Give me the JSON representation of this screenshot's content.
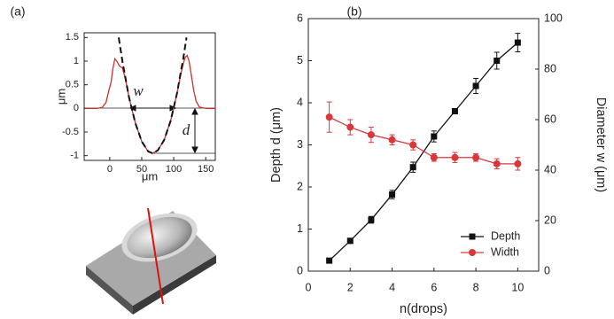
{
  "chart_data": [
    {
      "type": "line",
      "panel_label": "(a)",
      "x_label": "μm",
      "y_label": "μm",
      "xlim": [
        -40,
        165
      ],
      "ylim": [
        -1.1,
        1.6
      ],
      "xticks": [
        0,
        50,
        100,
        150
      ],
      "yticks": [
        -1,
        -0.5,
        0,
        0.5,
        1,
        1.5
      ],
      "annotations": [
        "w",
        "d"
      ],
      "series": [
        {
          "color": "#d0312d",
          "dash": false,
          "x": [
            -38,
            -20,
            -12,
            -6,
            -2,
            2,
            5,
            8,
            11,
            15,
            20,
            25,
            30,
            40,
            50,
            60,
            67,
            75,
            85,
            95,
            105,
            110,
            115,
            118,
            121,
            124,
            127,
            131,
            135,
            140,
            150,
            165
          ],
          "values": [
            0,
            0,
            0.02,
            0.12,
            0.35,
            0.55,
            0.85,
            1.05,
            1.0,
            0.9,
            0.85,
            0.59,
            0.24,
            -0.31,
            -0.7,
            -0.91,
            -0.95,
            -0.89,
            -0.67,
            -0.27,
            0.31,
            0.66,
            0.95,
            1.08,
            1.12,
            1.0,
            0.75,
            0.4,
            0.15,
            0.03,
            0,
            0
          ]
        },
        {
          "color": "#111111",
          "dash": true,
          "x": [
            14,
            20,
            30,
            40,
            50,
            60,
            67,
            75,
            85,
            95,
            105,
            115,
            120
          ],
          "values": [
            1.5,
            0.98,
            0.24,
            -0.31,
            -0.7,
            -0.91,
            -0.95,
            -0.89,
            -0.67,
            -0.27,
            0.31,
            1.06,
            1.5
          ]
        }
      ]
    },
    {
      "type": "line",
      "panel_label": "(b)",
      "x_label": "n(drops)",
      "y_label": "Depth d (μm)",
      "y2_label": "Diameter w (μm)",
      "xlim": [
        0,
        11
      ],
      "ylim": [
        0,
        6
      ],
      "y2lim": [
        0,
        100
      ],
      "xticks": [
        0,
        2,
        4,
        6,
        8,
        10
      ],
      "yticks": [
        0,
        1,
        2,
        3,
        4,
        5,
        6
      ],
      "y2ticks": [
        0,
        20,
        40,
        60,
        80,
        100
      ],
      "legend": "lower right",
      "x": [
        1,
        2,
        3,
        4,
        5,
        6,
        7,
        8,
        9,
        10
      ],
      "series": [
        {
          "name": "Depth",
          "color": "#111111",
          "marker": "square",
          "values": [
            0.25,
            0.72,
            1.22,
            1.82,
            2.47,
            3.2,
            3.8,
            4.4,
            5.0,
            5.43
          ],
          "errors": [
            0.03,
            0.06,
            0.08,
            0.1,
            0.12,
            0.13,
            0.05,
            0.18,
            0.2,
            0.22
          ]
        },
        {
          "name": "Width",
          "color": "#d9383a",
          "marker": "circle",
          "axis": "y2",
          "values": [
            61,
            57,
            54,
            52,
            50,
            45,
            45,
            45,
            42.5,
            42.5
          ],
          "errors": [
            6,
            3,
            3,
            2,
            2,
            1.5,
            2,
            1.5,
            2,
            2.5
          ]
        }
      ]
    }
  ]
}
